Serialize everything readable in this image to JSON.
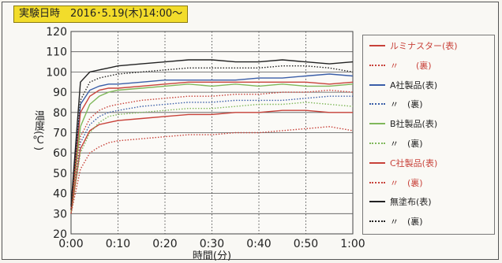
{
  "header": {
    "label": "実験日時　2016･5.19(木)14:00～"
  },
  "colors": {
    "red": "#c8423a",
    "blue": "#3a5ea8",
    "green": "#7fb85a",
    "black": "#222222"
  },
  "chart_data": {
    "type": "line",
    "xlabel": "時間(分)",
    "ylabel": "温度(℃)",
    "xticks": [
      "0:00",
      "0:10",
      "0:20",
      "0:30",
      "0:40",
      "0:50",
      "1:00"
    ],
    "x_minutes": [
      0,
      2,
      4,
      6,
      8,
      10,
      15,
      20,
      25,
      30,
      35,
      40,
      45,
      50,
      55,
      60
    ],
    "ylim": [
      20,
      120
    ],
    "ytick_step": 10,
    "grid": true,
    "series": [
      {
        "name": "ルミナスター(表)",
        "color": "red",
        "dash": false,
        "values": [
          30,
          62,
          71,
          74,
          75,
          76,
          77,
          78,
          79,
          79,
          80,
          80,
          81,
          81,
          80,
          80
        ]
      },
      {
        "name": "〃　　(裏)",
        "color": "red",
        "dash": true,
        "values": [
          30,
          52,
          60,
          63,
          65,
          66,
          67,
          68,
          69,
          69,
          70,
          70,
          71,
          72,
          73,
          71
        ]
      },
      {
        "name": "A社製品(表)",
        "color": "blue",
        "dash": false,
        "values": [
          33,
          84,
          91,
          93,
          94,
          94,
          95,
          96,
          96,
          96,
          96,
          97,
          97,
          98,
          99,
          98
        ]
      },
      {
        "name": "〃　(裏)",
        "color": "blue",
        "dash": true,
        "values": [
          30,
          65,
          74,
          78,
          80,
          81,
          83,
          84,
          85,
          85,
          86,
          86,
          86,
          87,
          88,
          88
        ]
      },
      {
        "name": "B社製品(表)",
        "color": "green",
        "dash": false,
        "values": [
          31,
          73,
          84,
          88,
          90,
          91,
          92,
          93,
          94,
          93,
          94,
          93,
          94,
          93,
          93,
          94
        ]
      },
      {
        "name": "〃　(裏)",
        "color": "green",
        "dash": true,
        "values": [
          30,
          60,
          70,
          75,
          78,
          79,
          80,
          81,
          82,
          82,
          83,
          84,
          84,
          85,
          84,
          83
        ]
      },
      {
        "name": "C社製品(表)",
        "color": "red",
        "dash": false,
        "values": [
          32,
          80,
          88,
          91,
          92,
          92,
          93,
          94,
          95,
          95,
          95,
          95,
          95,
          95,
          94,
          95
        ]
      },
      {
        "name": "〃　(裏)",
        "color": "red",
        "dash": true,
        "values": [
          30,
          68,
          77,
          81,
          83,
          84,
          86,
          87,
          88,
          88,
          89,
          89,
          90,
          90,
          91,
          90
        ]
      },
      {
        "name": "無塗布(表)",
        "color": "black",
        "dash": false,
        "values": [
          34,
          95,
          100,
          101,
          102,
          103,
          104,
          105,
          106,
          106,
          105,
          105,
          106,
          105,
          104,
          105
        ]
      },
      {
        "name": "〃　(裏)",
        "color": "black",
        "dash": true,
        "values": [
          32,
          86,
          95,
          97,
          98,
          99,
          100,
          101,
          102,
          102,
          102,
          102,
          103,
          103,
          102,
          100
        ]
      }
    ]
  }
}
